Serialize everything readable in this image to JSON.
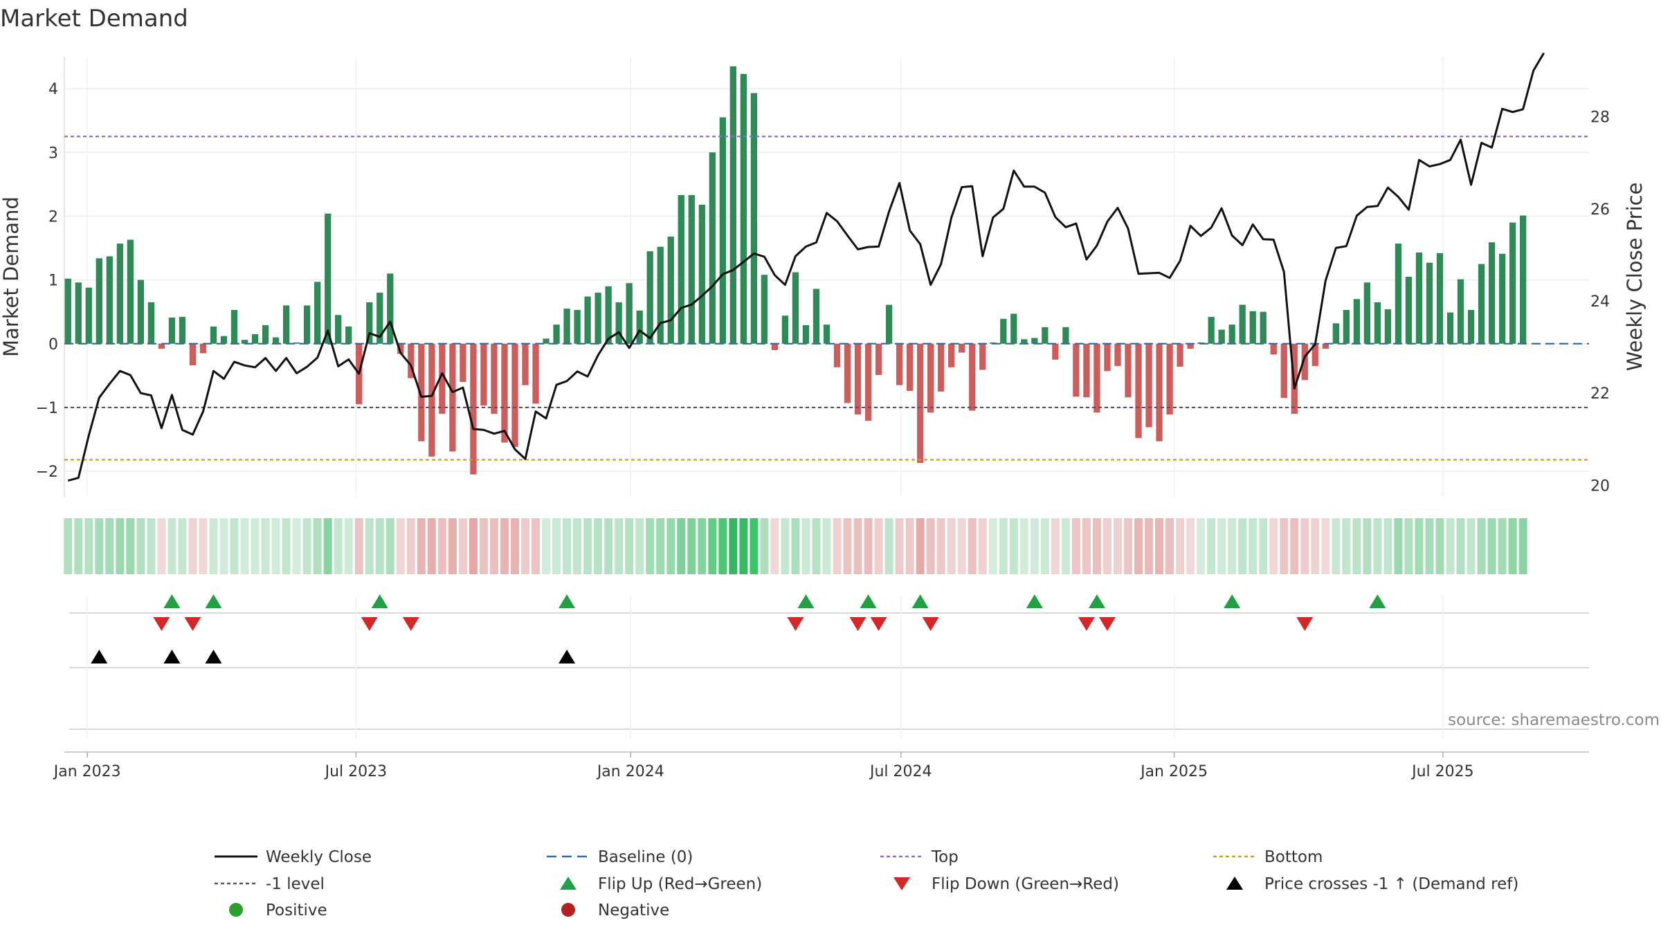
{
  "chart_data": {
    "type": "bar",
    "title": "Market Demand",
    "ylabel": "Market Demand",
    "y2label": "Weekly Close Price",
    "ylim": [
      -2.4,
      4.5
    ],
    "y2lim": [
      19.75,
      29.3
    ],
    "yticks": [
      -2,
      -1,
      0,
      1,
      2,
      3,
      4
    ],
    "y2ticks": [
      20,
      22,
      24,
      26,
      28
    ],
    "x_start": "2022-12-23",
    "x_step_days": 7,
    "xlim_weeks": [
      -0.35,
      146.35
    ],
    "xticks": [
      {
        "label": "Jan 2023",
        "week": 1.86
      },
      {
        "label": "Jul 2023",
        "week": 27.71
      },
      {
        "label": "Jan 2024",
        "week": 54.14
      },
      {
        "label": "Jul 2024",
        "week": 80.14
      },
      {
        "label": "Jan 2025",
        "week": 106.43
      },
      {
        "label": "Jul 2025",
        "week": 132.29
      }
    ],
    "series": [
      {
        "name": "Market Demand",
        "type": "bar",
        "values": [
          1.02,
          0.96,
          0.88,
          1.34,
          1.37,
          1.57,
          1.63,
          1.0,
          0.65,
          -0.08,
          0.41,
          0.42,
          -0.34,
          -0.15,
          0.27,
          0.12,
          0.53,
          0.06,
          0.15,
          0.29,
          0.1,
          0.6,
          0.02,
          0.6,
          0.97,
          2.04,
          0.45,
          0.27,
          -0.95,
          0.65,
          0.8,
          1.1,
          -0.16,
          -0.54,
          -1.53,
          -1.77,
          -1.1,
          -1.69,
          -0.6,
          -2.05,
          -0.97,
          -1.1,
          -1.55,
          -1.62,
          -0.65,
          -0.94,
          0.08,
          0.3,
          0.55,
          0.53,
          0.74,
          0.8,
          0.9,
          0.65,
          0.95,
          0.52,
          1.45,
          1.52,
          1.68,
          2.33,
          2.33,
          2.18,
          3.0,
          3.55,
          4.35,
          4.23,
          3.93,
          1.08,
          -0.1,
          0.44,
          1.12,
          0.29,
          0.86,
          0.3,
          -0.37,
          -0.93,
          -1.11,
          -1.21,
          -0.49,
          0.61,
          -0.65,
          -0.74,
          -1.87,
          -1.08,
          -0.75,
          -0.37,
          -0.14,
          -1.05,
          -0.41,
          0.02,
          0.39,
          0.47,
          0.07,
          0.09,
          0.26,
          -0.25,
          0.26,
          -0.83,
          -0.84,
          -1.08,
          -0.43,
          -0.35,
          -0.84,
          -1.48,
          -1.31,
          -1.53,
          -1.11,
          -0.36,
          -0.08,
          0.02,
          0.42,
          0.22,
          0.3,
          0.61,
          0.51,
          0.5,
          -0.17,
          -0.85,
          -1.1,
          -0.57,
          -0.35,
          -0.08,
          0.32,
          0.53,
          0.7,
          0.96,
          0.65,
          0.54,
          1.57,
          1.05,
          1.43,
          1.27,
          1.42,
          0.49,
          1.01,
          0.53,
          1.25,
          1.59,
          1.41,
          1.9,
          2.01
        ]
      },
      {
        "name": "Weekly Close",
        "type": "line",
        "axis": "right",
        "values": [
          20.1,
          20.16,
          21.08,
          21.9,
          22.2,
          22.48,
          22.39,
          22.0,
          21.95,
          21.24,
          21.96,
          21.2,
          21.1,
          21.6,
          22.48,
          22.31,
          22.68,
          22.6,
          22.56,
          22.76,
          22.48,
          22.76,
          22.43,
          22.57,
          22.77,
          23.36,
          22.58,
          22.73,
          22.42,
          23.3,
          23.22,
          23.55,
          22.87,
          22.6,
          21.92,
          21.94,
          22.43,
          22.02,
          22.12,
          21.22,
          21.2,
          21.12,
          21.18,
          20.78,
          20.57,
          21.6,
          21.45,
          22.18,
          22.26,
          22.47,
          22.36,
          22.82,
          23.18,
          23.32,
          22.98,
          23.36,
          23.19,
          23.52,
          23.58,
          23.85,
          23.92,
          24.11,
          24.32,
          24.58,
          24.67,
          24.85,
          25.03,
          24.96,
          24.56,
          24.35,
          24.97,
          25.18,
          25.27,
          25.91,
          25.73,
          25.42,
          25.12,
          25.17,
          25.18,
          25.94,
          26.56,
          25.53,
          25.23,
          24.35,
          24.8,
          25.81,
          26.47,
          26.49,
          24.97,
          25.81,
          26.0,
          26.83,
          26.48,
          26.48,
          26.35,
          25.82,
          25.6,
          25.68,
          24.9,
          25.2,
          25.72,
          26.02,
          25.57,
          24.59,
          24.6,
          24.61,
          24.5,
          24.87,
          25.63,
          25.41,
          25.59,
          26.01,
          25.42,
          25.21,
          25.66,
          25.34,
          25.33,
          24.63,
          22.1,
          22.79,
          23.06,
          24.44,
          25.15,
          25.19,
          25.85,
          26.04,
          26.06,
          26.46,
          26.26,
          25.98,
          27.06,
          26.92,
          26.97,
          27.06,
          27.5,
          26.52,
          27.43,
          27.33,
          28.17,
          28.1,
          28.16,
          29.0,
          29.38
        ]
      },
      {
        "name": "Baseline (0)",
        "type": "hline",
        "value": 0
      },
      {
        "name": "Top",
        "type": "hline",
        "value": 3.25
      },
      {
        "name": "-1 level",
        "type": "hline",
        "value": -1
      },
      {
        "name": "Bottom",
        "type": "hline",
        "value": -1.82
      }
    ],
    "flip_up_weeks": [
      10,
      14,
      30,
      48,
      71,
      77,
      82,
      93,
      99,
      112,
      126
    ],
    "flip_down_weeks": [
      9,
      12,
      29,
      33,
      70,
      76,
      78,
      83,
      98,
      100,
      119
    ],
    "price_cross_weeks": [
      3,
      10,
      14,
      48
    ],
    "legend": [
      {
        "label": "Weekly Close",
        "marker": "solid-line",
        "color": "#111111"
      },
      {
        "label": "Baseline (0)",
        "marker": "dashed-line",
        "color": "#2e6fa8"
      },
      {
        "label": "Top",
        "marker": "dotted-line",
        "color": "#7a78c8"
      },
      {
        "label": "Bottom",
        "marker": "dotted-line",
        "color": "#d4a017"
      },
      {
        "label": "-1 level",
        "marker": "dotted-line",
        "color": "#555566"
      },
      {
        "label": "Flip Up (Red→Green)",
        "marker": "triangle-up",
        "color": "#22a044"
      },
      {
        "label": "Flip Down (Green→Red)",
        "marker": "triangle-down",
        "color": "#d62728"
      },
      {
        "label": "Price crosses -1 ↑ (Demand ref)",
        "marker": "triangle-up",
        "color": "#000000"
      },
      {
        "label": "Positive",
        "marker": "circle",
        "color": "#2ca02c"
      },
      {
        "label": "Negative",
        "marker": "circle",
        "color": "#b22222"
      }
    ],
    "legend_position": "bottom-center",
    "grid": true
  },
  "source": "source: sharemaestro.com",
  "colors": {
    "positive_bar": "#2e8b57",
    "negative_bar": "#cd5c5c",
    "price_line": "#111111"
  }
}
